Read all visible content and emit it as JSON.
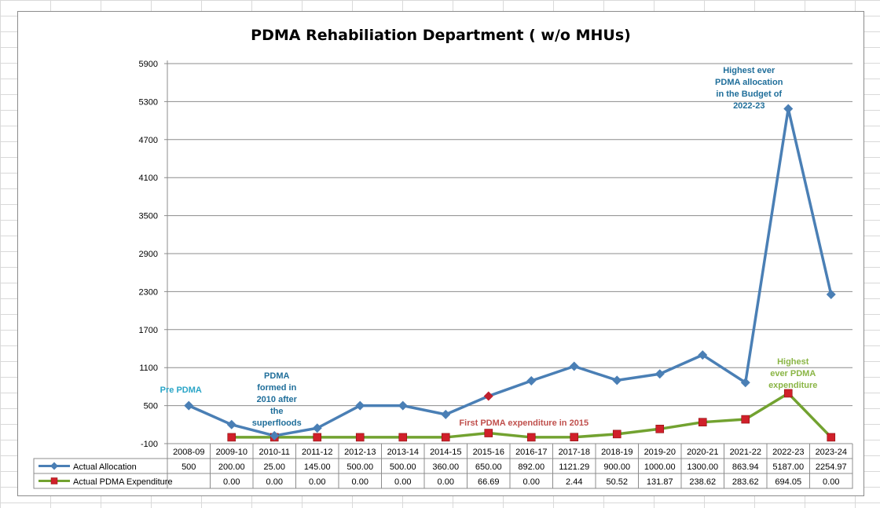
{
  "chart_data": {
    "type": "line",
    "title": "PDMA Rehabiliation Department ( w/o MHUs)",
    "categories": [
      "2008-09",
      "2009-10",
      "2010-11",
      "2011-12",
      "2012-13",
      "2013-14",
      "2014-15",
      "2015-16",
      "2016-17",
      "2017-18",
      "2018-19",
      "2019-20",
      "2020-21",
      "2021-22",
      "2022-23",
      "2023-24"
    ],
    "yticks": [
      -100,
      500,
      1100,
      1700,
      2300,
      2900,
      3500,
      4100,
      4700,
      5300,
      5900
    ],
    "ylim": [
      -100,
      5900
    ],
    "grid": true,
    "legend": "bottom (data table)",
    "series": [
      {
        "name": "Actual Allocation",
        "color": "#4a7fb5",
        "marker": "diamond",
        "values": [
          500,
          200,
          25,
          145,
          500,
          500,
          360,
          650,
          892,
          1121.29,
          900,
          1000,
          1300,
          863.94,
          5187,
          2254.97
        ],
        "table_labels": [
          "500",
          "200.00",
          "25.00",
          "145.00",
          "500.00",
          "500.00",
          "360.00",
          "650.00",
          "892.00",
          "1121.29",
          "900.00",
          "1000.00",
          "1300.00",
          "863.94",
          "5187.00",
          "2254.97"
        ],
        "highlight_index": 7,
        "highlight_color": "#c0202e"
      },
      {
        "name": "Actual PDMA Expenditure",
        "color": "#72a230",
        "marker": "square",
        "marker_color": "#d0202a",
        "values": [
          null,
          0,
          0,
          0,
          0,
          0,
          0,
          66.69,
          0,
          2.44,
          50.52,
          131.87,
          238.62,
          283.62,
          694.05,
          0
        ],
        "table_labels": [
          "",
          "0.00",
          "0.00",
          "0.00",
          "0.00",
          "0.00",
          "0.00",
          "66.69",
          "0.00",
          "2.44",
          "50.52",
          "131.87",
          "238.62",
          "283.62",
          "694.05",
          "0.00"
        ]
      }
    ],
    "annotations": [
      {
        "lines": [
          "Pre PDMA"
        ],
        "color": "#2aa5c7"
      },
      {
        "lines": [
          "PDMA",
          "formed in",
          "2010 after",
          "the",
          "superfloods"
        ],
        "color": "#1f6e9a"
      },
      {
        "lines": [
          "First PDMA expenditure  in 2015"
        ],
        "color": "#c0504d"
      },
      {
        "lines": [
          "Highest ever",
          "PDMA allocation",
          "in the Budget of",
          "2022-23"
        ],
        "color": "#1f6e9a"
      },
      {
        "lines": [
          "Highest",
          "ever PDMA",
          "expenditure"
        ],
        "color": "#8ab545"
      }
    ]
  }
}
